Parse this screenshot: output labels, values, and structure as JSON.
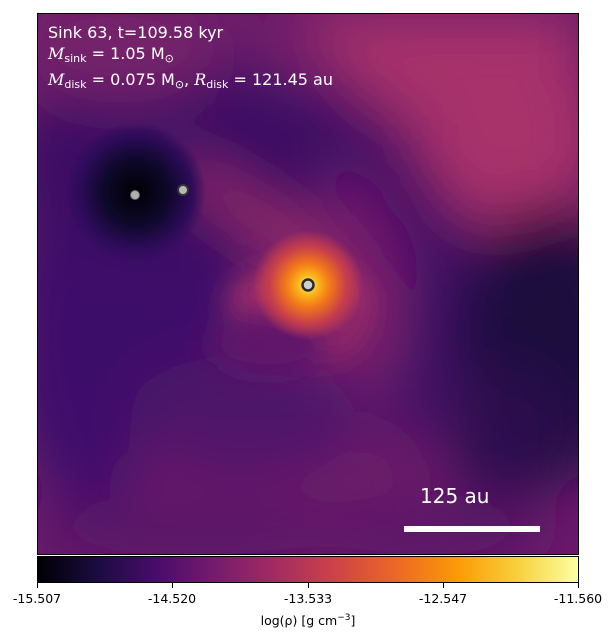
{
  "annotation": {
    "line1": "Sink 63, t=109.58 kyr",
    "msink_symbol": "M",
    "msink_sub": "sink",
    "msink_value": " = 1.05 M",
    "sun_sub": "⊙",
    "mdisk_symbol": "M",
    "mdisk_sub": "disk",
    "mdisk_value": " = 0.075 M",
    "rdisk_symbol": "R",
    "rdisk_sub": "disk",
    "rdisk_value": " = 121.45 au"
  },
  "scalebar": {
    "label": "125 au"
  },
  "colorbar": {
    "ticks": [
      "-15.507",
      "-14.520",
      "-13.533",
      "-12.547",
      "-11.560"
    ],
    "label_main": "log(ρ) [g cm",
    "label_exp": "−3",
    "label_end": "]"
  },
  "colors": {
    "cmap": "inferno"
  }
}
